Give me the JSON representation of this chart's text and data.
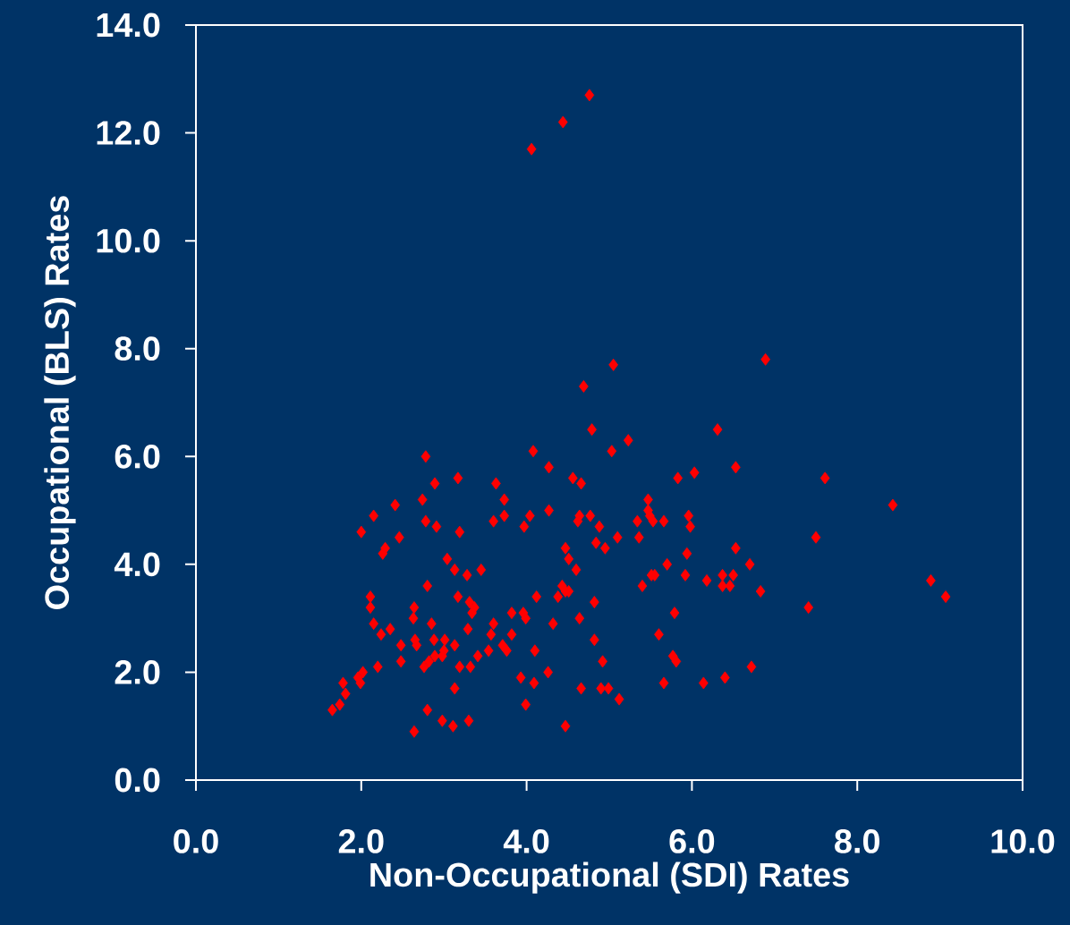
{
  "chart_data": {
    "type": "scatter",
    "xlabel": "Non-Occupational (SDI) Rates",
    "ylabel": "Occupational (BLS) Rates",
    "color": "#ff0000",
    "marker": "diamond",
    "x": [
      1.65,
      1.74,
      1.78,
      1.81,
      1.96,
      1.99,
      2.02,
      2.0,
      2.15,
      2.11,
      2.11,
      2.15,
      2.2,
      2.24,
      2.26,
      2.29,
      2.35,
      2.41,
      2.46,
      2.48,
      2.48,
      2.63,
      2.64,
      2.64,
      2.65,
      2.67,
      2.74,
      2.78,
      2.78,
      2.76,
      2.8,
      2.8,
      2.85,
      2.82,
      2.88,
      2.89,
      2.91,
      2.89,
      2.98,
      2.98,
      3.0,
      3.04,
      3.01,
      3.11,
      3.13,
      3.13,
      3.13,
      3.17,
      3.17,
      3.19,
      3.19,
      3.28,
      3.29,
      3.31,
      3.32,
      3.3,
      3.34,
      3.37,
      3.41,
      3.45,
      3.54,
      3.57,
      3.6,
      3.6,
      3.63,
      3.71,
      3.73,
      3.73,
      3.76,
      3.82,
      3.82,
      3.93,
      3.96,
      3.97,
      3.99,
      3.99,
      4.04,
      4.06,
      4.08,
      4.09,
      4.1,
      4.12,
      4.26,
      4.27,
      4.27,
      4.32,
      4.38,
      4.44,
      4.43,
      4.47,
      4.47,
      4.47,
      4.51,
      4.51,
      4.56,
      4.6,
      4.62,
      4.64,
      4.64,
      4.66,
      4.66,
      4.69,
      4.77,
      4.76,
      4.79,
      4.82,
      4.82,
      4.84,
      4.88,
      4.9,
      4.92,
      4.95,
      4.99,
      5.03,
      5.05,
      5.1,
      5.12,
      5.23,
      5.34,
      5.36,
      5.4,
      5.47,
      5.47,
      5.49,
      5.51,
      5.53,
      5.55,
      5.6,
      5.66,
      5.66,
      5.7,
      5.77,
      5.79,
      5.81,
      5.83,
      5.92,
      5.94,
      5.96,
      5.98,
      6.03,
      6.14,
      6.18,
      6.31,
      6.37,
      6.37,
      6.4,
      6.46,
      6.5,
      6.53,
      6.53,
      6.7,
      6.72,
      6.83,
      6.89,
      7.41,
      7.5,
      7.61,
      8.43,
      8.89,
      9.07
    ],
    "values": [
      1.3,
      1.4,
      1.8,
      1.6,
      1.9,
      1.8,
      2.0,
      4.6,
      4.9,
      3.4,
      3.2,
      2.9,
      2.1,
      2.7,
      4.2,
      4.3,
      2.8,
      5.1,
      4.5,
      2.5,
      2.2,
      3.0,
      3.2,
      0.9,
      2.6,
      2.5,
      5.2,
      6.0,
      4.8,
      2.1,
      3.6,
      1.3,
      2.9,
      2.2,
      2.6,
      5.5,
      4.7,
      2.3,
      1.1,
      2.3,
      2.4,
      4.1,
      2.6,
      1.0,
      1.7,
      2.5,
      3.9,
      5.6,
      3.4,
      4.6,
      2.1,
      3.8,
      2.8,
      3.3,
      2.1,
      1.1,
      3.1,
      3.2,
      2.3,
      3.9,
      2.4,
      2.7,
      2.9,
      4.8,
      5.5,
      2.5,
      4.9,
      5.2,
      2.4,
      2.7,
      3.1,
      1.9,
      3.1,
      4.7,
      3.0,
      1.4,
      4.9,
      11.7,
      6.1,
      1.8,
      2.4,
      3.4,
      2.0,
      5.8,
      5.0,
      2.9,
      3.4,
      12.2,
      3.6,
      4.3,
      1.0,
      3.5,
      4.1,
      3.5,
      5.6,
      3.9,
      4.8,
      4.9,
      3.0,
      1.7,
      5.5,
      7.3,
      4.9,
      12.7,
      6.5,
      3.3,
      2.6,
      4.4,
      4.7,
      1.7,
      2.2,
      4.3,
      1.7,
      6.1,
      7.7,
      4.5,
      1.5,
      6.3,
      4.8,
      4.5,
      3.6,
      5.2,
      5.0,
      4.9,
      3.8,
      4.8,
      3.8,
      2.7,
      4.8,
      1.8,
      4.0,
      2.3,
      3.1,
      2.2,
      5.6,
      3.8,
      4.2,
      4.9,
      4.7,
      5.7,
      1.8,
      3.7,
      6.5,
      3.8,
      3.6,
      1.9,
      3.6,
      3.8,
      4.3,
      5.8,
      4.0,
      2.1,
      3.5,
      7.8,
      3.2,
      4.5,
      5.6,
      5.1,
      3.7,
      3.4
    ],
    "xlim": [
      0,
      10
    ],
    "ylim": [
      0,
      14
    ],
    "xticks": [
      {
        "value": 0,
        "label": "0.0"
      },
      {
        "value": 2,
        "label": "2.0"
      },
      {
        "value": 4,
        "label": "4.0"
      },
      {
        "value": 6,
        "label": "6.0"
      },
      {
        "value": 8,
        "label": "8.0"
      },
      {
        "value": 10,
        "label": "10.0"
      }
    ],
    "yticks": [
      {
        "value": 0,
        "label": "0.0"
      },
      {
        "value": 2,
        "label": "2.0"
      },
      {
        "value": 4,
        "label": "4.0"
      },
      {
        "value": 6,
        "label": "6.0"
      },
      {
        "value": 8,
        "label": "8.0"
      },
      {
        "value": 10,
        "label": "10.0"
      },
      {
        "value": 12,
        "label": "12.0"
      },
      {
        "value": 14,
        "label": "14.0"
      }
    ]
  }
}
